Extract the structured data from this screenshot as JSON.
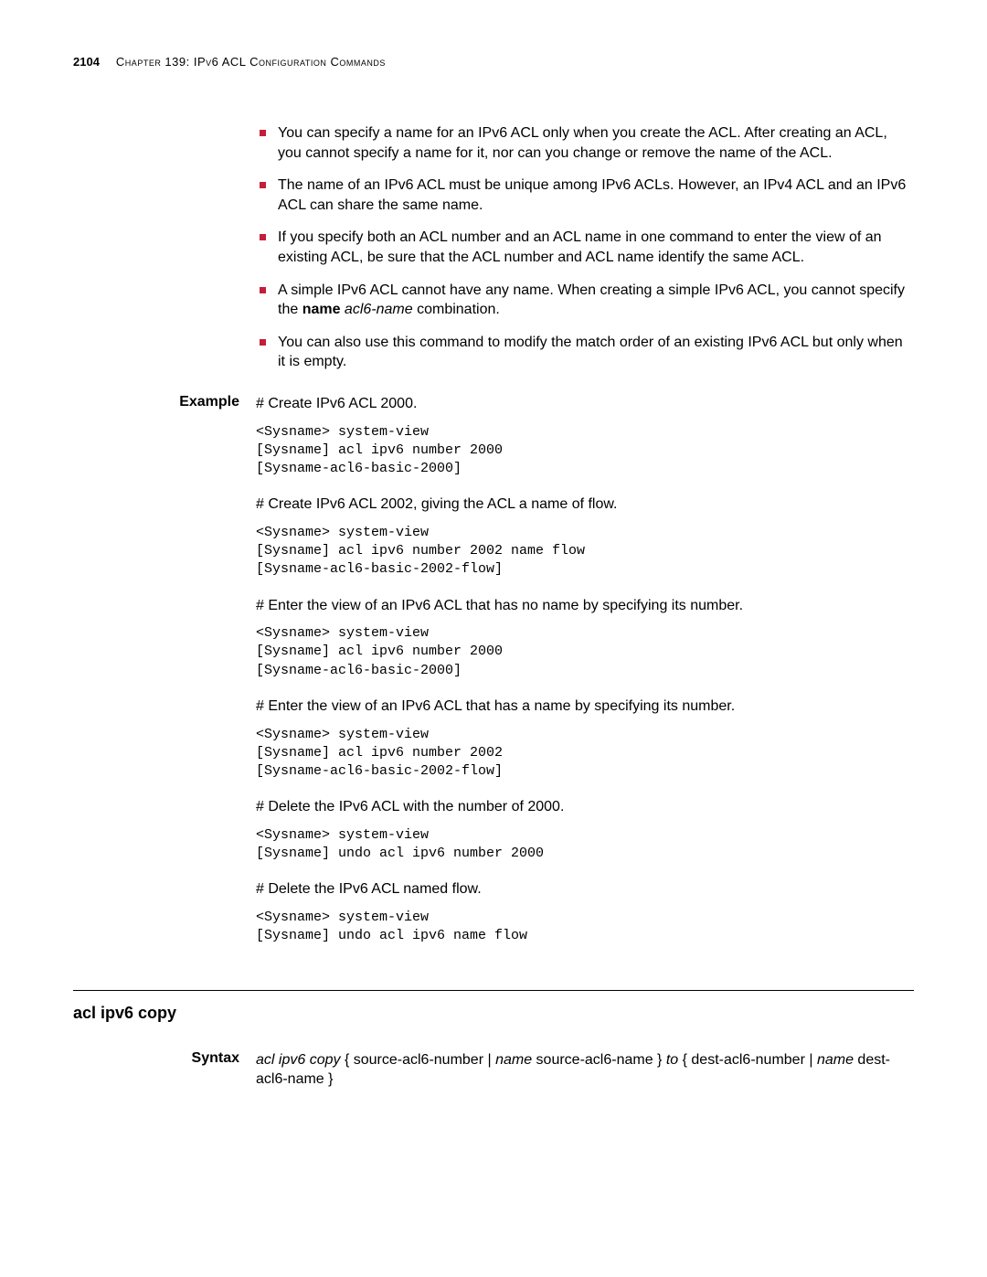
{
  "header": {
    "page_number": "2104",
    "chapter_label": "Chapter 139: IPv6 ACL Configuration Commands"
  },
  "bullets": [
    "You can specify a name for an IPv6 ACL only when you create the ACL. After creating an ACL, you cannot specify a name for it, nor can you change or remove the name of the ACL.",
    "The name of an IPv6 ACL must be unique among IPv6 ACLs. However, an IPv4 ACL and an IPv6 ACL can share the same name.",
    "If you specify both an ACL number and an ACL name in one command to enter the view of an existing ACL, be sure that the ACL number and ACL name identify the same ACL.",
    "",
    "You can also use this command to modify the match order of an existing IPv6 ACL but only when it is empty."
  ],
  "bullet4": {
    "prefix": "A simple IPv6 ACL cannot have any name. When creating a simple IPv6 ACL, you cannot specify the ",
    "bold": "name",
    "italic": " acl6-name",
    "suffix": " combination."
  },
  "example": {
    "label": "Example",
    "p1": "# Create IPv6 ACL 2000.",
    "c1": "<Sysname> system-view\n[Sysname] acl ipv6 number 2000\n[Sysname-acl6-basic-2000]",
    "p2": "# Create IPv6 ACL 2002, giving the ACL a name of flow.",
    "c2": "<Sysname> system-view\n[Sysname] acl ipv6 number 2002 name flow\n[Sysname-acl6-basic-2002-flow]",
    "p3": "# Enter the view of an IPv6 ACL that has no name by specifying its number.",
    "c3": "<Sysname> system-view\n[Sysname] acl ipv6 number 2000\n[Sysname-acl6-basic-2000]",
    "p4": "# Enter the view of an IPv6 ACL that has a name by specifying its number.",
    "c4": "<Sysname> system-view\n[Sysname] acl ipv6 number 2002\n[Sysname-acl6-basic-2002-flow]",
    "p5": "# Delete the IPv6 ACL with the number of 2000.",
    "c5": "<Sysname> system-view\n[Sysname] undo acl ipv6 number 2000",
    "p6": "# Delete the IPv6 ACL named flow.",
    "c6": "<Sysname> system-view\n[Sysname] undo acl ipv6 name flow"
  },
  "section2": {
    "heading": "acl ipv6 copy",
    "syntax_label": "Syntax",
    "syntax": {
      "t1": "acl ipv6 copy",
      "t2": " { source-acl6-number | ",
      "t3": "name",
      "t4": " source-acl6-name } ",
      "t5": "to",
      "t6": " { dest-acl6-number | ",
      "t7": "name",
      "t8": " dest-acl6-name }"
    }
  },
  "colors": {
    "bullet": "#c41e3a",
    "text": "#000000",
    "background": "#ffffff"
  }
}
